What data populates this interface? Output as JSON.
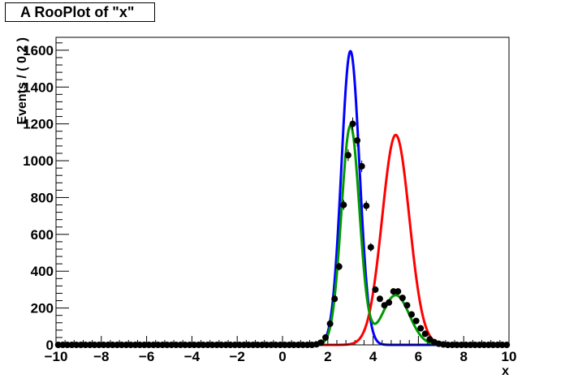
{
  "chart_data": {
    "type": "line",
    "title": "A RooPlot of \"x\"",
    "xlabel": "x",
    "ylabel": "Events / ( 0.2 )",
    "xlim": [
      -10,
      10
    ],
    "ylim": [
      0,
      1670
    ],
    "x_ticks": [
      -10,
      -8,
      -6,
      -4,
      -2,
      0,
      2,
      4,
      6,
      8,
      10
    ],
    "y_ticks": [
      0,
      200,
      400,
      600,
      800,
      1000,
      1200,
      1400,
      1600
    ],
    "x_tick_labels": [
      "−10",
      "−8",
      "−6",
      "−4",
      "−2",
      "0",
      "2",
      "4",
      "6",
      "8",
      "10"
    ],
    "y_tick_labels": [
      "0",
      "200",
      "400",
      "600",
      "800",
      "1000",
      "1200",
      "1400",
      "1600"
    ],
    "grid": false,
    "curves": [
      {
        "component": "sig1",
        "color": "#0000ff",
        "peak": 1595,
        "mean": 3.0,
        "sigma": 0.4
      },
      {
        "component": "sig2",
        "color": "#ff0000",
        "peak": 1140,
        "mean": 5.0,
        "sigma": 0.6
      },
      {
        "component": "sum",
        "color": "#009900",
        "terms": [
          {
            "peak": 1190,
            "mean": 3.0,
            "sigma": 0.4
          },
          {
            "peak": 270,
            "mean": 5.0,
            "sigma": 0.6
          }
        ]
      }
    ],
    "data_points": {
      "x": [
        -9.9,
        -9.7,
        -9.5,
        -9.3,
        -9.1,
        -8.9,
        -8.7,
        -8.5,
        -8.3,
        -8.1,
        -7.9,
        -7.7,
        -7.5,
        -7.3,
        -7.1,
        -6.9,
        -6.7,
        -6.5,
        -6.3,
        -6.1,
        -5.9,
        -5.7,
        -5.5,
        -5.3,
        -5.1,
        -4.9,
        -4.7,
        -4.5,
        -4.3,
        -4.1,
        -3.9,
        -3.7,
        -3.5,
        -3.3,
        -3.1,
        -2.9,
        -2.7,
        -2.5,
        -2.3,
        -2.1,
        -1.9,
        -1.7,
        -1.5,
        -1.3,
        -1.1,
        -0.9,
        -0.7,
        -0.5,
        -0.3,
        -0.1,
        0.1,
        0.3,
        0.5,
        0.7,
        0.9,
        1.1,
        1.3,
        1.5,
        1.7,
        1.9,
        2.1,
        2.3,
        2.5,
        2.7,
        2.9,
        3.1,
        3.3,
        3.5,
        3.7,
        3.9,
        4.1,
        4.3,
        4.5,
        4.7,
        4.9,
        5.1,
        5.3,
        5.5,
        5.7,
        5.9,
        6.1,
        6.3,
        6.5,
        6.7,
        6.9,
        7.1,
        7.3,
        7.5,
        7.7,
        7.9,
        8.1,
        8.3,
        8.5,
        8.7,
        8.9,
        9.1,
        9.3,
        9.5,
        9.7,
        9.9
      ],
      "y": [
        0,
        0,
        0,
        0,
        0,
        0,
        0,
        0,
        0,
        0,
        0,
        0,
        0,
        0,
        0,
        0,
        0,
        0,
        0,
        0,
        0,
        0,
        0,
        0,
        0,
        0,
        0,
        0,
        0,
        0,
        0,
        0,
        0,
        0,
        0,
        0,
        0,
        0,
        0,
        0,
        0,
        0,
        0,
        0,
        0,
        0,
        0,
        0,
        0,
        0,
        0,
        0,
        0,
        0,
        0,
        0,
        0,
        3,
        12,
        40,
        115,
        250,
        425,
        760,
        1030,
        1200,
        1110,
        970,
        755,
        530,
        300,
        250,
        215,
        230,
        290,
        290,
        255,
        215,
        165,
        130,
        90,
        60,
        30,
        15,
        6,
        2,
        0,
        0,
        0,
        0,
        0,
        0,
        0,
        0,
        0,
        0,
        0,
        0,
        0,
        0
      ]
    }
  }
}
